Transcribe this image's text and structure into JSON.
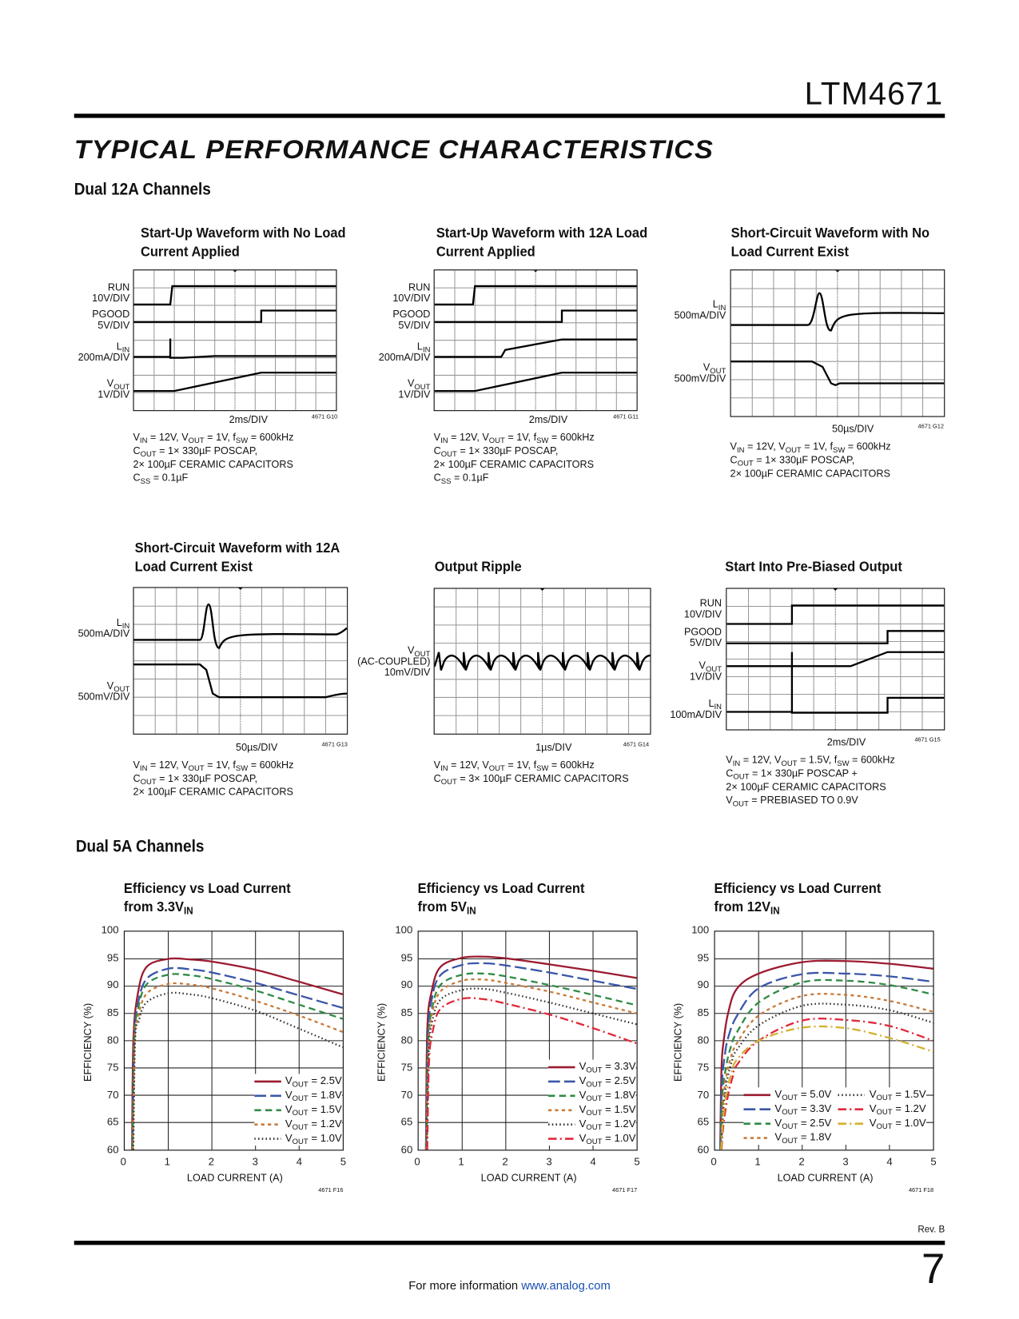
{
  "header": {
    "part_number": "LTM4671",
    "section_title": "TYPICAL PERFORMANCE CHARACTERISTICS"
  },
  "sections": {
    "dual12": "Dual 12A Channels",
    "dual5": "Dual 5A Channels"
  },
  "scopes": [
    {
      "title": [
        "Start-Up Waveform with No Load",
        "Current Applied"
      ],
      "channels": [
        "RUN|10V/DIV",
        "PGOOD|5V/DIV",
        "LIN|200mA/DIV",
        "VOUT|1V/DIV"
      ],
      "timebase": "2ms/DIV",
      "fig": "4671 G10",
      "notes": [
        "VIN = 12V, VOUT = 1V, fSW = 600kHz",
        "COUT = 1× 330µF POSCAP,",
        "2× 100µF CERAMIC CAPACITORS",
        "CSS = 0.1µF"
      ]
    },
    {
      "title": [
        "Start-Up Waveform with 12A Load",
        "Current Applied"
      ],
      "channels": [
        "RUN|10V/DIV",
        "PGOOD|5V/DIV",
        "LIN|200mA/DIV",
        "VOUT|1V/DIV"
      ],
      "timebase": "2ms/DIV",
      "fig": "4671 G11",
      "notes": [
        "VIN = 12V, VOUT = 1V, fSW = 600kHz",
        "COUT = 1× 330µF POSCAP,",
        "2× 100µF CERAMIC CAPACITORS",
        "CSS = 0.1µF"
      ]
    },
    {
      "title": [
        "Short-Circuit Waveform with No",
        "Load Current Exist"
      ],
      "channels": [
        "LIN|500mA/DIV",
        "VOUT|500mV/DIV"
      ],
      "timebase": "50µs/DIV",
      "fig": "4671 G12",
      "notes": [
        "VIN = 12V, VOUT = 1V, fSW = 600kHz",
        "COUT = 1× 330µF POSCAP,",
        "2× 100µF CERAMIC CAPACITORS"
      ]
    },
    {
      "title": [
        "Short-Circuit Waveform with 12A",
        "Load Current Exist"
      ],
      "channels": [
        "LIN|500mA/DIV",
        "VOUT|500mV/DIV"
      ],
      "timebase": "50µs/DIV",
      "fig": "4671 G13",
      "notes": [
        "VIN = 12V, VOUT = 1V, fSW = 600kHz",
        "COUT = 1× 330µF POSCAP,",
        "2× 100µF CERAMIC CAPACITORS"
      ]
    },
    {
      "title": [
        "Output Ripple"
      ],
      "channels": [
        "VOUT|(AC-COUPLED)|10mV/DIV"
      ],
      "timebase": "1µs/DIV",
      "fig": "4671 G14",
      "notes": [
        "VIN = 12V, VOUT = 1V, fSW = 600kHz",
        "COUT = 3× 100µF CERAMIC CAPACITORS"
      ]
    },
    {
      "title": [
        "Start Into Pre-Biased Output"
      ],
      "channels": [
        "RUN|10V/DIV",
        "PGOOD|5V/DIV",
        "VOUT|1V/DIV",
        "LIN|100mA/DIV"
      ],
      "timebase": "2ms/DIV",
      "fig": "4671 G15",
      "notes": [
        "VIN = 12V, VOUT = 1.5V, fSW = 600kHz",
        "COUT = 1× 330µF POSCAP +",
        "2× 100µF CERAMIC CAPACITORS",
        "VOUT = PREBIASED TO 0.9V"
      ]
    }
  ],
  "chart_data": [
    {
      "type": "line",
      "title": "Efficiency vs Load Current from 3.3VIN",
      "xlabel": "LOAD CURRENT (A)",
      "ylabel": "EFFICIENCY (%)",
      "xlim": [
        0,
        5
      ],
      "ylim": [
        60,
        100
      ],
      "xticks": [
        "0",
        "1",
        "2",
        "3",
        "4",
        "5"
      ],
      "yticks": [
        "60",
        "65",
        "70",
        "75",
        "80",
        "85",
        "90",
        "95",
        "100"
      ],
      "grid": true,
      "legend": "bottom-right",
      "fig": "4671 F16",
      "series": [
        {
          "name": "VOUT = 2.5V",
          "color": "#9b1b30",
          "dash": "solid",
          "x": [
            0.17,
            0.2,
            0.3,
            0.5,
            1,
            1.5,
            2,
            3,
            4,
            5
          ],
          "y": [
            60,
            80,
            88.5,
            93.5,
            95,
            94.9,
            94.5,
            93,
            90.8,
            88.5
          ]
        },
        {
          "name": "VOUT = 1.8V",
          "color": "#3a57a8",
          "dash": "long",
          "x": [
            0.18,
            0.22,
            0.3,
            0.5,
            1,
            1.5,
            2,
            3,
            4,
            5
          ],
          "y": [
            60,
            80,
            86.5,
            91.3,
            93.2,
            93.1,
            92.5,
            90.6,
            88.3,
            86
          ]
        },
        {
          "name": "VOUT = 1.5V",
          "color": "#2e8b45",
          "dash": "med",
          "x": [
            0.18,
            0.22,
            0.3,
            0.5,
            1,
            1.5,
            2,
            3,
            4,
            5
          ],
          "y": [
            60,
            80,
            85.5,
            90.3,
            92.1,
            92,
            91.3,
            89.2,
            86.6,
            84
          ]
        },
        {
          "name": "VOUT = 1.2V",
          "color": "#c87a3a",
          "dash": "short",
          "x": [
            0.19,
            0.23,
            0.3,
            0.5,
            1,
            1.5,
            2,
            3,
            4,
            5
          ],
          "y": [
            60,
            80,
            84,
            88.6,
            90.4,
            90.3,
            89.6,
            87.3,
            84.6,
            81.6
          ]
        },
        {
          "name": "VOUT = 1.0V",
          "color": "#333333",
          "dash": "dot",
          "x": [
            0.2,
            0.24,
            0.32,
            0.5,
            1,
            1.5,
            2,
            3,
            4,
            5
          ],
          "y": [
            60,
            80,
            83.5,
            87,
            88.7,
            88.5,
            87.8,
            85.5,
            82.2,
            78.8
          ]
        }
      ]
    },
    {
      "type": "line",
      "title": "Efficiency vs Load Current from 5VIN",
      "xlabel": "LOAD CURRENT (A)",
      "ylabel": "EFFICIENCY (%)",
      "xlim": [
        0,
        5
      ],
      "ylim": [
        60,
        100
      ],
      "xticks": [
        "0",
        "1",
        "2",
        "3",
        "4",
        "5"
      ],
      "yticks": [
        "60",
        "65",
        "70",
        "75",
        "80",
        "85",
        "90",
        "95",
        "100"
      ],
      "grid": true,
      "legend": "bottom-right",
      "fig": "4671 F17",
      "series": [
        {
          "name": "VOUT = 3.3V",
          "color": "#9b1b30",
          "dash": "solid",
          "x": [
            0.17,
            0.2,
            0.3,
            0.5,
            1,
            1.5,
            2,
            3,
            4,
            5
          ],
          "y": [
            60,
            82,
            89,
            93.5,
            95.2,
            95.4,
            95.1,
            94,
            92.8,
            91.5
          ]
        },
        {
          "name": "VOUT = 2.5V",
          "color": "#3a57a8",
          "dash": "long",
          "x": [
            0.17,
            0.21,
            0.3,
            0.5,
            1,
            1.5,
            2,
            3,
            4,
            5
          ],
          "y": [
            60,
            80,
            87.5,
            92,
            93.9,
            94.2,
            93.8,
            92.5,
            91,
            89.5
          ]
        },
        {
          "name": "VOUT = 1.8V",
          "color": "#2e8b45",
          "dash": "med",
          "x": [
            0.18,
            0.22,
            0.3,
            0.5,
            1,
            1.5,
            2,
            3,
            4,
            5
          ],
          "y": [
            60,
            79,
            85.5,
            90.2,
            92.1,
            92.3,
            91.8,
            90.2,
            88.4,
            86.5
          ]
        },
        {
          "name": "VOUT = 1.5V",
          "color": "#c87a3a",
          "dash": "short",
          "x": [
            0.18,
            0.22,
            0.3,
            0.5,
            1,
            1.5,
            2,
            3,
            4,
            5
          ],
          "y": [
            60,
            78,
            84.5,
            89,
            91,
            91.2,
            90.6,
            89,
            87,
            85
          ]
        },
        {
          "name": "VOUT = 1.2V",
          "color": "#333333",
          "dash": "dot",
          "x": [
            0.19,
            0.23,
            0.3,
            0.5,
            1,
            1.5,
            2,
            3,
            4,
            5
          ],
          "y": [
            60,
            77,
            83,
            87.5,
            89.3,
            89.5,
            88.8,
            87,
            85,
            83
          ]
        },
        {
          "name": "VOUT = 1.0V",
          "color": "#e0283a",
          "dash": "dashdot",
          "x": [
            0.2,
            0.24,
            0.32,
            0.5,
            1,
            1.5,
            2,
            3,
            4,
            5
          ],
          "y": [
            60,
            76,
            81.5,
            85.8,
            87.7,
            87.6,
            86.8,
            84.8,
            82.3,
            79.5
          ]
        }
      ]
    },
    {
      "type": "line",
      "title": "Efficiency vs Load Current from 12VIN",
      "xlabel": "LOAD CURRENT (A)",
      "ylabel": "EFFICIENCY (%)",
      "xlim": [
        0,
        5
      ],
      "ylim": [
        60,
        100
      ],
      "xticks": [
        "0",
        "1",
        "2",
        "3",
        "4",
        "5"
      ],
      "yticks": [
        "60",
        "65",
        "70",
        "75",
        "80",
        "85",
        "90",
        "95",
        "100"
      ],
      "grid": true,
      "legend": "bottom",
      "fig": "4671 F18",
      "series": [
        {
          "name": "VOUT = 5.0V",
          "color": "#9b1b30",
          "dash": "solid",
          "x": [
            0.12,
            0.15,
            0.2,
            0.3,
            0.5,
            1,
            2,
            3,
            4,
            5
          ],
          "y": [
            60,
            75,
            80,
            85,
            89.5,
            92.3,
            94.4,
            94.6,
            94.1,
            93.2
          ]
        },
        {
          "name": "VOUT = 3.3V",
          "color": "#3a57a8",
          "dash": "long",
          "x": [
            0.12,
            0.16,
            0.22,
            0.3,
            0.5,
            1,
            2,
            3,
            4,
            5
          ],
          "y": [
            60,
            72,
            77,
            80.5,
            84.5,
            89.6,
            92.2,
            92.3,
            91.8,
            90.8
          ]
        },
        {
          "name": "VOUT = 2.5V",
          "color": "#2e8b45",
          "dash": "med",
          "x": [
            0.13,
            0.17,
            0.25,
            0.35,
            0.5,
            1,
            2,
            3,
            4,
            5
          ],
          "y": [
            60,
            70,
            75,
            78.5,
            81.5,
            87,
            90.7,
            91,
            90.2,
            88.5
          ]
        },
        {
          "name": "VOUT = 1.8V",
          "color": "#c87a3a",
          "dash": "short",
          "x": [
            0.14,
            0.18,
            0.25,
            0.35,
            0.5,
            1,
            2,
            3,
            4,
            5
          ],
          "y": [
            60,
            68,
            73,
            76.5,
            79.5,
            84.6,
            88.2,
            88.4,
            87.3,
            85.3
          ]
        },
        {
          "name": "VOUT = 1.5V",
          "color": "#333333",
          "dash": "dot",
          "x": [
            0.14,
            0.19,
            0.26,
            0.38,
            0.5,
            1,
            2,
            3,
            4,
            5
          ],
          "y": [
            60,
            67,
            72,
            76,
            78.3,
            82.8,
            86.4,
            86.6,
            85.6,
            83.3
          ]
        },
        {
          "name": "VOUT = 1.2V",
          "color": "#e0283a",
          "dash": "dashdot",
          "x": [
            0.15,
            0.2,
            0.3,
            0.4,
            0.5,
            1,
            2,
            3,
            4,
            5
          ],
          "y": [
            60,
            65,
            70,
            73.2,
            75.5,
            80,
            83.7,
            83.8,
            82.7,
            80
          ]
        },
        {
          "name": "VOUT = 1.0V",
          "color": "#d4b030",
          "dash": "dashdot",
          "x": [
            0.14,
            0.19,
            0.28,
            0.38,
            0.5,
            1,
            2,
            3,
            4,
            5
          ],
          "y": [
            60,
            66,
            71,
            74,
            76.5,
            80,
            82.4,
            82.3,
            80.5,
            78
          ]
        }
      ]
    }
  ],
  "footer": {
    "rev": "Rev. B",
    "page": "7",
    "text": "For more information ",
    "link": "www.analog.com"
  }
}
